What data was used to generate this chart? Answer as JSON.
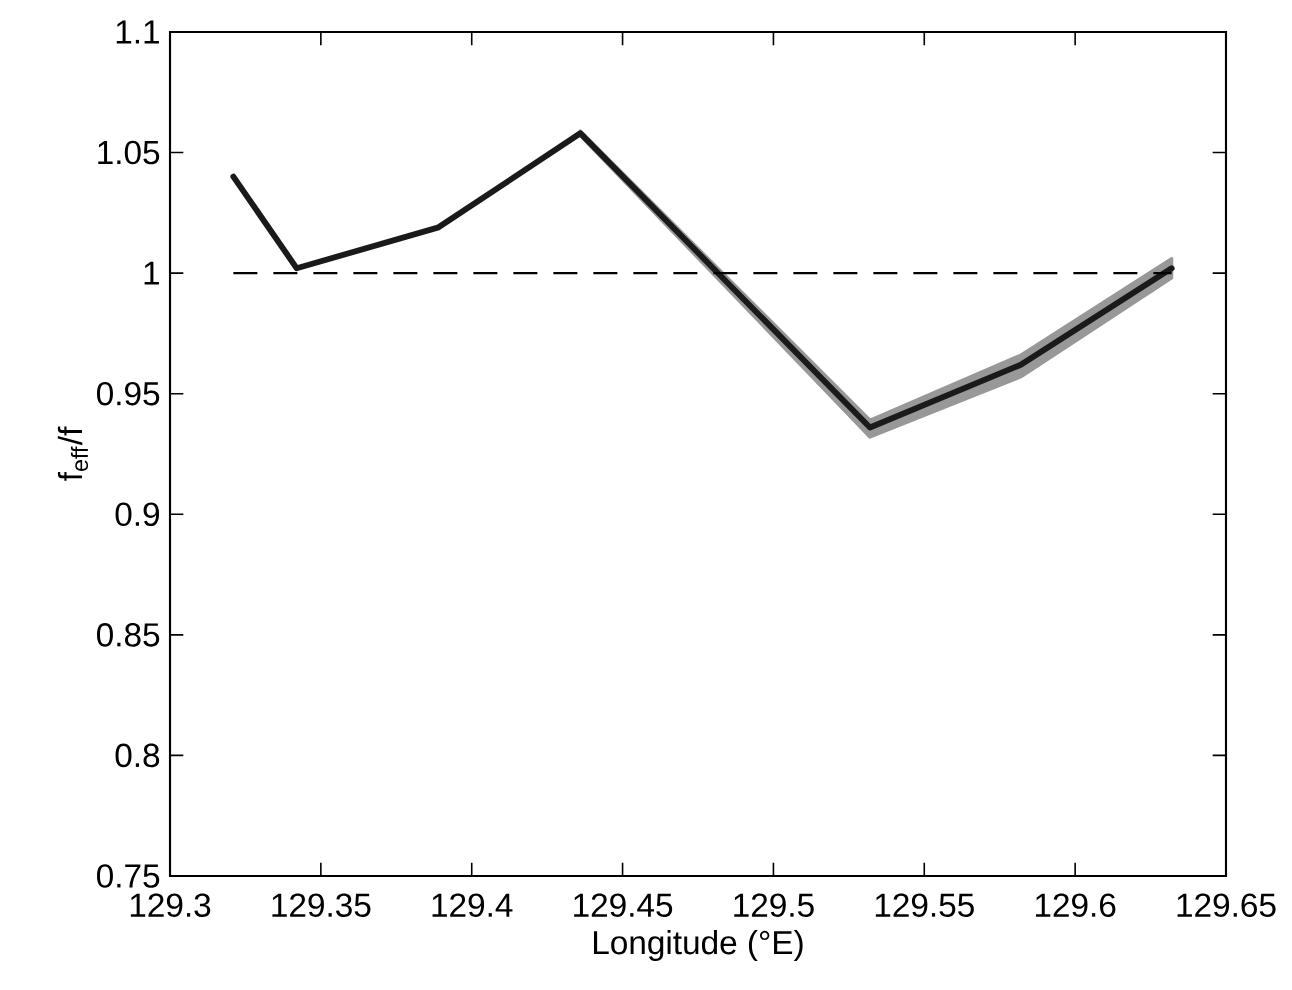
{
  "chart_data": {
    "type": "line",
    "xlabel": "Longitude (°E)",
    "ylabel": "f$_{eff}$/f",
    "x": [
      129.321,
      129.342,
      129.389,
      129.436,
      129.532,
      129.582,
      129.632
    ],
    "series": [
      {
        "color": "#1a1a1a",
        "values": [
          1.04,
          1.002,
          1.019,
          1.058,
          0.936,
          0.962,
          1.002
        ],
        "lower": [
          null,
          null,
          null,
          1.057,
          0.932,
          0.957,
          0.998
        ],
        "upper": [
          null,
          null,
          null,
          1.059,
          0.939,
          0.966,
          1.006
        ]
      }
    ],
    "xlim": [
      129.3,
      129.65
    ],
    "ylim": [
      0.75,
      1.1
    ],
    "xticks": [
      129.3,
      129.35,
      129.4,
      129.45,
      129.5,
      129.55,
      129.6,
      129.65
    ],
    "yticks": [
      0.75,
      0.8,
      0.85,
      0.9,
      0.95,
      1,
      1.05,
      1.1
    ],
    "ref_lines": [
      {
        "axis": "y",
        "value": 1,
        "line_style": "dashed",
        "color": "#000000"
      }
    ],
    "grid": false,
    "marker": "none",
    "line_style": "solid"
  }
}
